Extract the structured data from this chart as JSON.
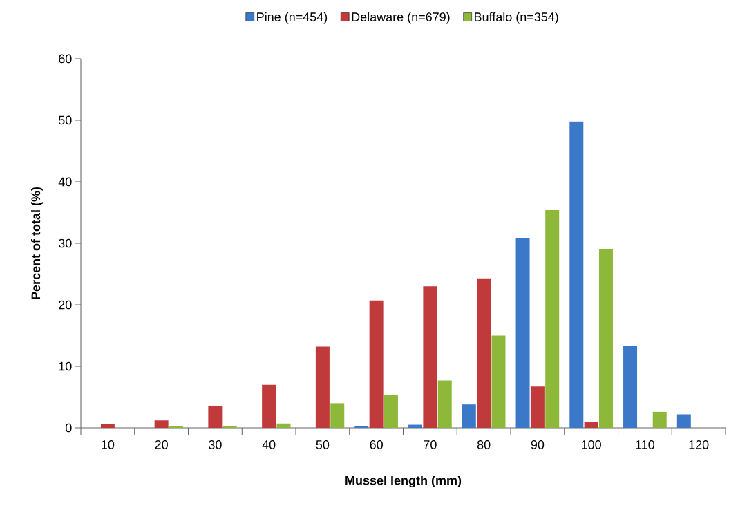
{
  "chart_data": {
    "type": "bar",
    "xlabel": "Mussel length (mm)",
    "ylabel": "Percent of total (%)",
    "categories": [
      "10",
      "20",
      "30",
      "40",
      "50",
      "60",
      "70",
      "80",
      "90",
      "100",
      "110",
      "120"
    ],
    "series": [
      {
        "name": "Pine (n=454)",
        "color": "#3b78c8",
        "values": [
          0,
          0,
          0,
          0,
          0,
          0.3,
          0.5,
          3.8,
          30.9,
          49.8,
          13.3,
          2.2
        ]
      },
      {
        "name": "Delaware (n=679)",
        "color": "#c0393b",
        "values": [
          0.6,
          1.2,
          3.6,
          7.0,
          13.2,
          20.7,
          23.0,
          24.3,
          6.7,
          0.9,
          0,
          0
        ]
      },
      {
        "name": "Buffalo (n=354)",
        "color": "#8db83a",
        "values": [
          0,
          0.3,
          0.3,
          0.7,
          4.0,
          5.4,
          7.7,
          15.0,
          35.4,
          29.1,
          2.6,
          0
        ]
      }
    ],
    "ylim": [
      0,
      60
    ],
    "yticks": [
      0,
      10,
      20,
      30,
      40,
      50,
      60
    ],
    "grid": false,
    "legend": "top"
  }
}
